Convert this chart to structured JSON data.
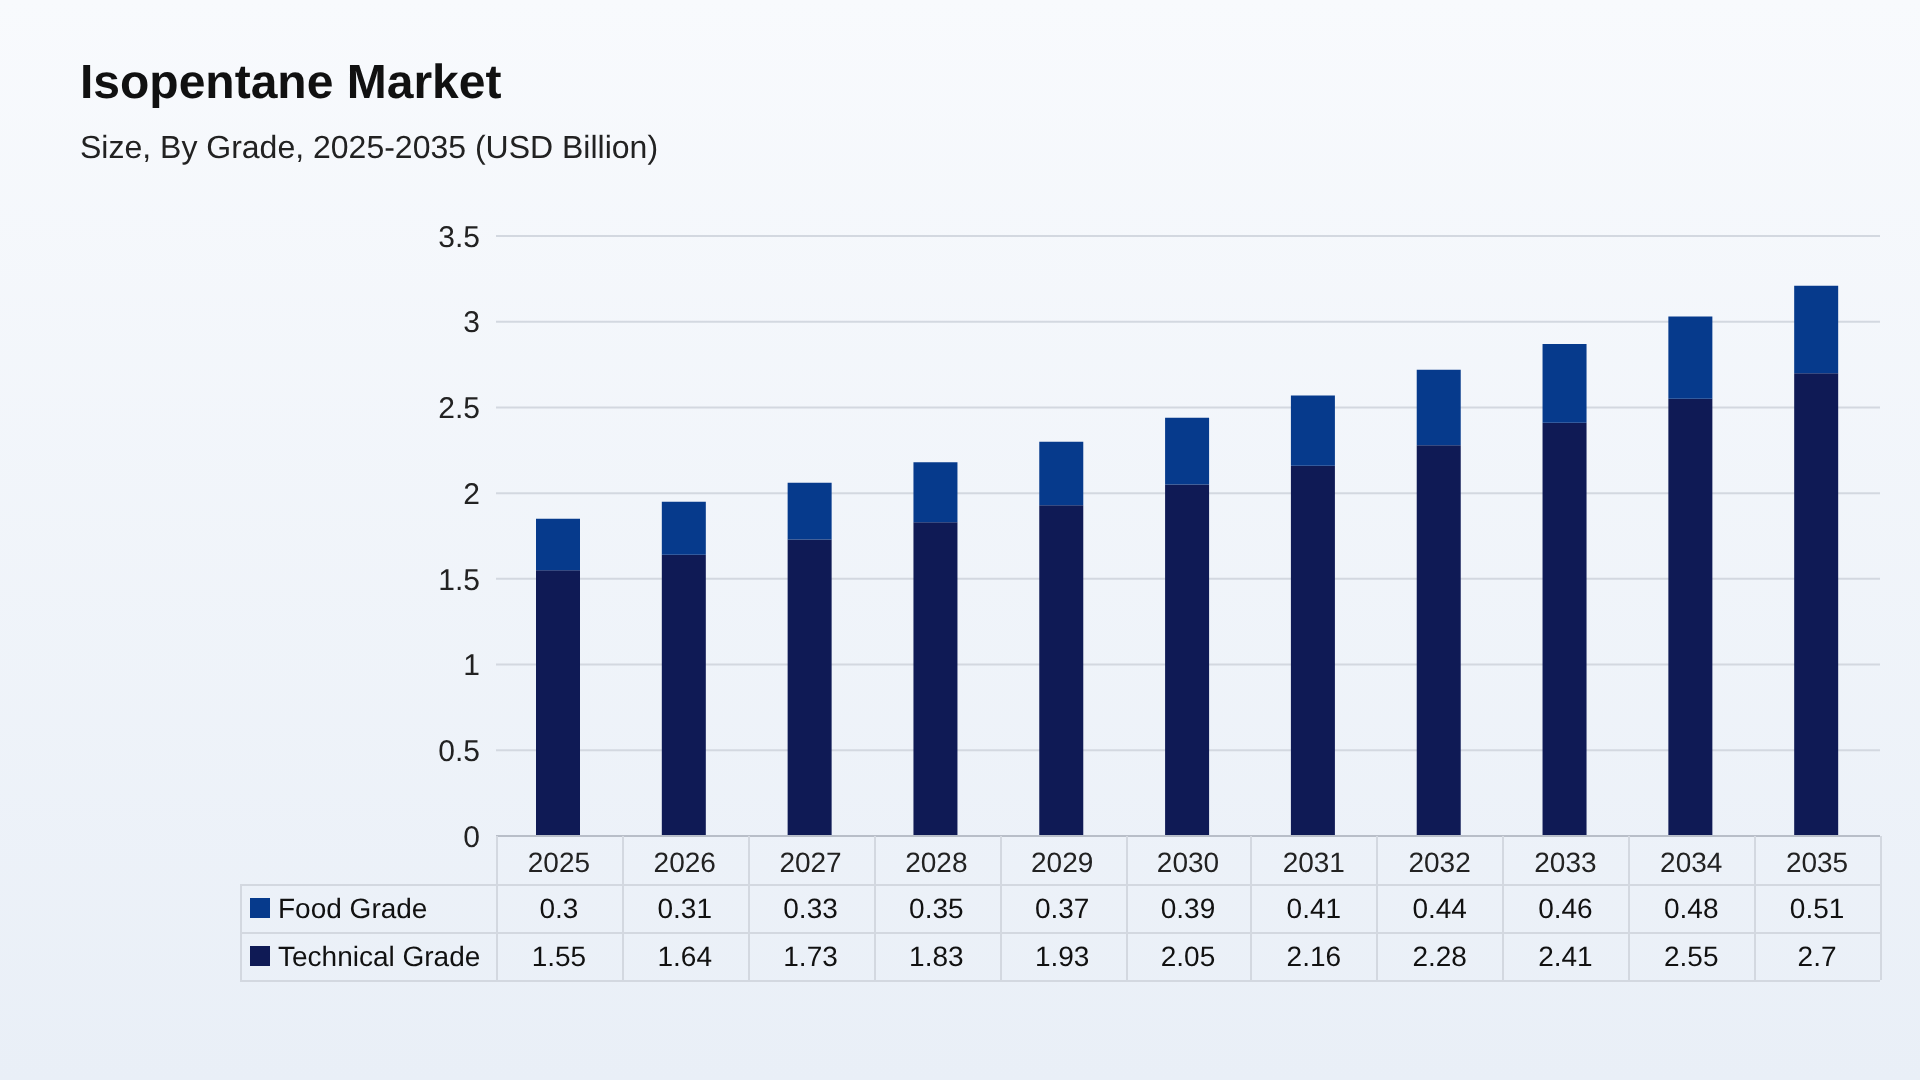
{
  "chart_data": {
    "type": "bar",
    "title": "Isopentane Market",
    "subtitle": "Size, By Grade, 2025-2035 (USD Billion)",
    "categories": [
      "2025",
      "2026",
      "2027",
      "2028",
      "2029",
      "2030",
      "2031",
      "2032",
      "2033",
      "2034",
      "2035"
    ],
    "series": [
      {
        "name": "Technical Grade",
        "color": "#0f1a55",
        "values": [
          1.55,
          1.64,
          1.73,
          1.83,
          1.93,
          2.05,
          2.16,
          2.28,
          2.41,
          2.55,
          2.7
        ]
      },
      {
        "name": "Food Grade",
        "color": "#063a8c",
        "values": [
          0.3,
          0.31,
          0.33,
          0.35,
          0.37,
          0.39,
          0.41,
          0.44,
          0.46,
          0.48,
          0.51
        ]
      }
    ],
    "stacked": true,
    "ylim": [
      0,
      3.5
    ],
    "yticks": [
      0,
      0.5,
      1,
      1.5,
      2,
      2.5,
      3,
      3.5
    ],
    "grid": "y",
    "legend": "bottom",
    "data_labels": true
  }
}
